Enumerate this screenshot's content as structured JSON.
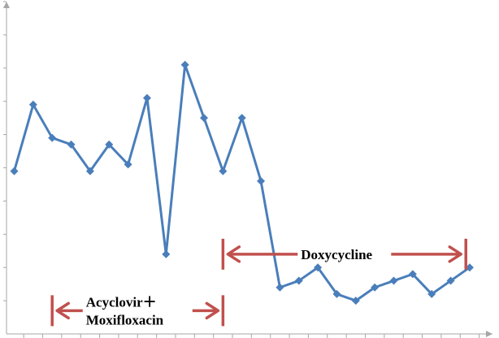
{
  "chart_data": {
    "type": "line",
    "title": "",
    "xlabel": "",
    "ylabel": "",
    "x": [
      1,
      2,
      3,
      4,
      5,
      6,
      7,
      8,
      9,
      10,
      11,
      12,
      13,
      14,
      15,
      16,
      17,
      18,
      19,
      20,
      21,
      22,
      23,
      24,
      25
    ],
    "series": [
      {
        "name": "",
        "color": "#4a7ebb",
        "values": [
          4.9,
          6.9,
          5.9,
          5.7,
          4.9,
          5.7,
          5.1,
          7.1,
          2.4,
          8.1,
          6.5,
          4.9,
          6.5,
          4.6,
          1.4,
          1.6,
          2.0,
          1.2,
          1.0,
          1.4,
          1.6,
          1.8,
          1.2,
          1.6,
          2.0
        ]
      }
    ],
    "ylim": [
      0,
      10
    ],
    "y_ticks": 10,
    "grid": false,
    "axis_color": "#a6a6a6",
    "annotations": [
      {
        "id": "acyclovir",
        "lines": [
          "Acyclovir＋",
          "Moxifloxacin"
        ],
        "x_start": 3.0,
        "x_end": 12.0,
        "y": 0.7,
        "color": "#c0504d"
      },
      {
        "id": "doxycycline",
        "lines": [
          "Doxycycline"
        ],
        "x_start": 12.0,
        "x_end": 24.8,
        "y": 2.4,
        "color": "#c0504d"
      }
    ]
  }
}
